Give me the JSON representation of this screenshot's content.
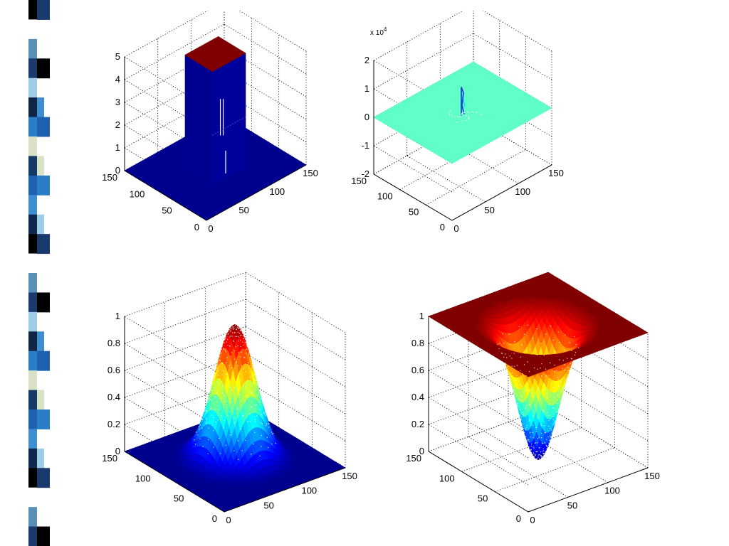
{
  "slide": {
    "stripe_colors": [
      "#1a3a6e",
      "#3f8fd0",
      "#0e2546",
      "#000000",
      "#d9e2c6",
      "#5a8fb8",
      "#1f60b0",
      "#9fcde8",
      "#0c2a4f",
      "#2a7ec8",
      "#ffffff",
      "#143a66"
    ]
  },
  "colormap": [
    "#00008f",
    "#0000ff",
    "#0080ff",
    "#00ffff",
    "#80ff80",
    "#ffff00",
    "#ff8000",
    "#ff0000",
    "#800000"
  ],
  "chart_data": [
    {
      "type": "surface",
      "surface": "box",
      "x_range": [
        0,
        150
      ],
      "y_range": [
        0,
        150
      ],
      "z_range": [
        0,
        5
      ],
      "x_ticks": [
        "0",
        "50",
        "100",
        "150"
      ],
      "y_ticks": [
        "0",
        "50",
        "100",
        "150"
      ],
      "z_ticks": [
        "0",
        "1",
        "2",
        "3",
        "4",
        "5"
      ],
      "z_exponent": "",
      "box_x": [
        50,
        100
      ],
      "box_y": [
        50,
        100
      ],
      "box_height": 5,
      "grid": true
    },
    {
      "type": "surface",
      "surface": "spike",
      "x_range": [
        0,
        150
      ],
      "y_range": [
        0,
        150
      ],
      "z_range": [
        -2,
        2
      ],
      "x_ticks": [
        "0",
        "50",
        "100",
        "150"
      ],
      "y_ticks": [
        "0",
        "50",
        "100",
        "150"
      ],
      "z_ticks": [
        "-2",
        "-1",
        "0",
        "1",
        "2"
      ],
      "z_exponent": "x 10",
      "z_exponent_power": "4",
      "plane_z": 0,
      "grid": true
    },
    {
      "type": "surface",
      "surface": "gaussian",
      "x_range": [
        0,
        150
      ],
      "y_range": [
        0,
        150
      ],
      "z_range": [
        0,
        1
      ],
      "x_ticks": [
        "0",
        "50",
        "100",
        "150"
      ],
      "y_ticks": [
        "0",
        "50",
        "100",
        "150"
      ],
      "z_ticks": [
        "0",
        "0.2",
        "0.4",
        "0.6",
        "0.8",
        "1"
      ],
      "z_exponent": "",
      "center": [
        75,
        75
      ],
      "sigma": 20,
      "peak": 1,
      "grid": true
    },
    {
      "type": "surface",
      "surface": "inverted-gaussian",
      "x_range": [
        0,
        150
      ],
      "y_range": [
        0,
        150
      ],
      "z_range": [
        0,
        1
      ],
      "x_ticks": [
        "0",
        "50",
        "100",
        "150"
      ],
      "y_ticks": [
        "0",
        "50",
        "100",
        "150"
      ],
      "z_ticks": [
        "0",
        "0.2",
        "0.4",
        "0.6",
        "0.8",
        "1"
      ],
      "z_exponent": "",
      "center": [
        75,
        75
      ],
      "sigma": 20,
      "min": 0,
      "grid": true
    }
  ]
}
